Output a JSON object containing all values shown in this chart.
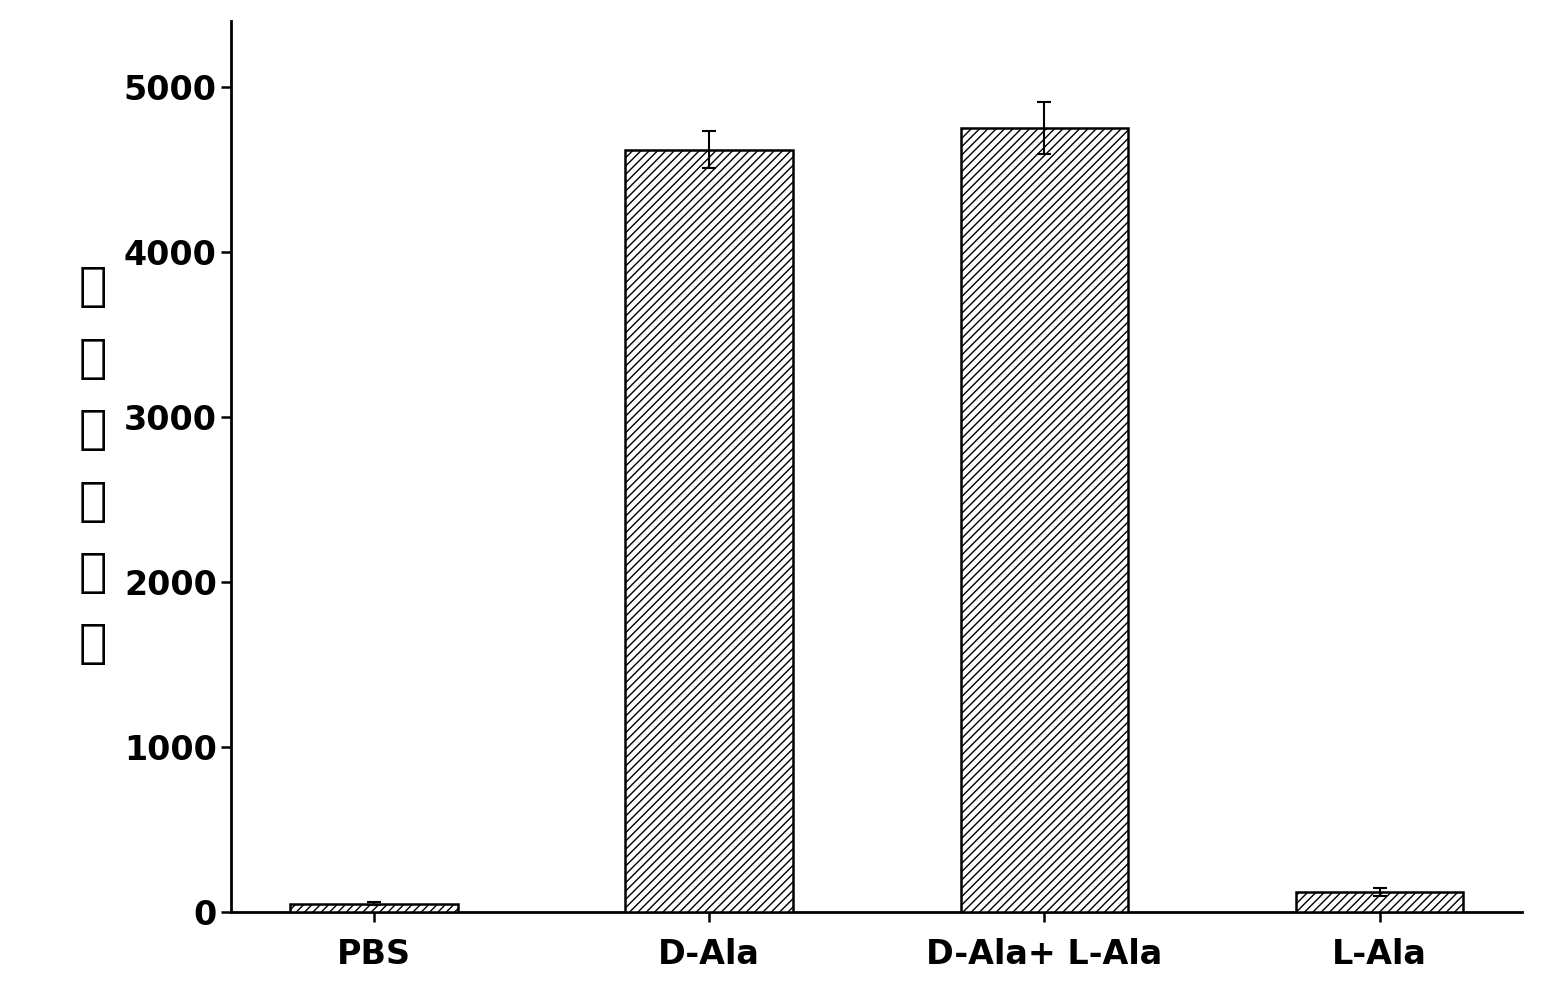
{
  "categories": [
    "PBS",
    "D-Ala",
    "D-Ala+ L-Ala",
    "L-Ala"
  ],
  "values": [
    50,
    4620,
    4750,
    120
  ],
  "errors": [
    10,
    110,
    160,
    25
  ],
  "ylabel_chars": [
    "平",
    "均",
    "发",
    "光",
    "强",
    "度"
  ],
  "ylim": [
    0,
    5400
  ],
  "yticks": [
    0,
    1000,
    2000,
    3000,
    4000,
    5000
  ],
  "bar_color": "#ffffff",
  "bar_edgecolor": "#000000",
  "hatch_pattern": "////",
  "bar_width": 0.5,
  "xlabel_fontsize": 24,
  "ylabel_fontsize": 34,
  "tick_fontsize": 24,
  "error_capsize": 5,
  "error_linewidth": 1.5,
  "spine_linewidth": 2.0,
  "background_color": "#ffffff"
}
